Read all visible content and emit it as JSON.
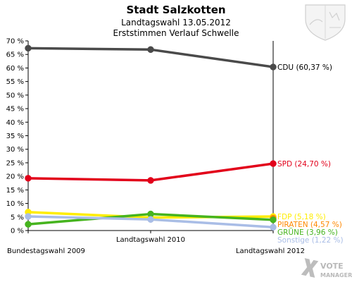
{
  "chart_data": {
    "type": "line",
    "title": "Stadt Salzkotten",
    "subtitle": "Landtagswahl 13.05.2012",
    "subtitle2": "Erststimmen Verlauf Schwelle",
    "categories": [
      "Bundestagswahl 2009",
      "Landtagswahl 2010",
      "Landtagswahl 2012"
    ],
    "ylim": [
      0,
      70
    ],
    "ytick_step": 5,
    "ytick_labels": [
      "0 %",
      "5 %",
      "10 %",
      "15 %",
      "20 %",
      "25 %",
      "30 %",
      "35 %",
      "40 %",
      "45 %",
      "50 %",
      "55 %",
      "60 %",
      "65 %",
      "70 %"
    ],
    "grid": false,
    "series": [
      {
        "name": "CDU",
        "label": "CDU (60,37 %)",
        "color": "#4a4a4a",
        "values": [
          67.3,
          66.8,
          60.37
        ]
      },
      {
        "name": "SPD",
        "label": "SPD (24,70 %)",
        "color": "#e2001a",
        "values": [
          19.3,
          18.5,
          24.7
        ]
      },
      {
        "name": "FDP",
        "label": "FDP (5,18 %)",
        "color": "#ffed00",
        "values": [
          6.8,
          4.8,
          5.18
        ]
      },
      {
        "name": "PIRATEN",
        "label": "PIRATEN (4,57 %)",
        "color": "#ff8800",
        "values": [
          null,
          null,
          4.57
        ]
      },
      {
        "name": "GRÜNE",
        "label": "GRÜNE (3,96 %)",
        "color": "#46b41e",
        "values": [
          2.3,
          6.1,
          3.96
        ]
      },
      {
        "name": "Sonstige",
        "label": "Sonstige (1,22 %)",
        "color": "#a9bde6",
        "values": [
          5.2,
          4.1,
          1.22
        ]
      }
    ]
  },
  "branding": {
    "line1": "VOTE",
    "line2": "MANAGER"
  },
  "colors": {
    "axis": "#000000",
    "background": "#ffffff"
  }
}
